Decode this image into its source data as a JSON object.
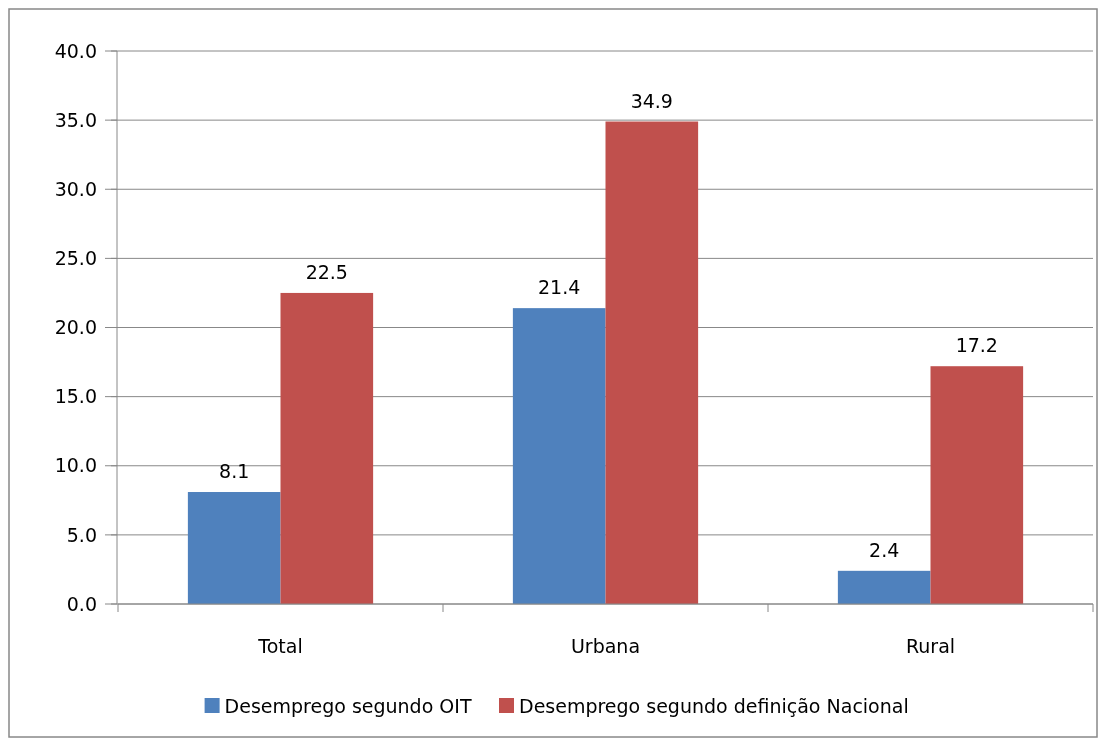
{
  "chart_data": {
    "type": "bar",
    "categories": [
      "Total",
      "Urbana",
      "Rural"
    ],
    "series": [
      {
        "name": "Desemprego segundo OIT",
        "color": "#4f81bd",
        "values": [
          8.1,
          21.4,
          2.4
        ]
      },
      {
        "name": "Desemprego segundo definição Nacional",
        "color": "#c0504d",
        "values": [
          22.5,
          34.9,
          17.2
        ]
      }
    ],
    "ylim": [
      0,
      40
    ],
    "yticks": [
      {
        "value": 0,
        "label": "0.0"
      },
      {
        "value": 5,
        "label": "5.0"
      },
      {
        "value": 10,
        "label": "10.0"
      },
      {
        "value": 15,
        "label": "15.0"
      },
      {
        "value": 20,
        "label": "20.0"
      },
      {
        "value": 25,
        "label": "25.0"
      },
      {
        "value": 30,
        "label": "30.0"
      },
      {
        "value": 35,
        "label": "35.0"
      },
      {
        "value": 40,
        "label": "40.0"
      }
    ],
    "grid": "y",
    "legend": "bottom",
    "data_labels": true
  }
}
